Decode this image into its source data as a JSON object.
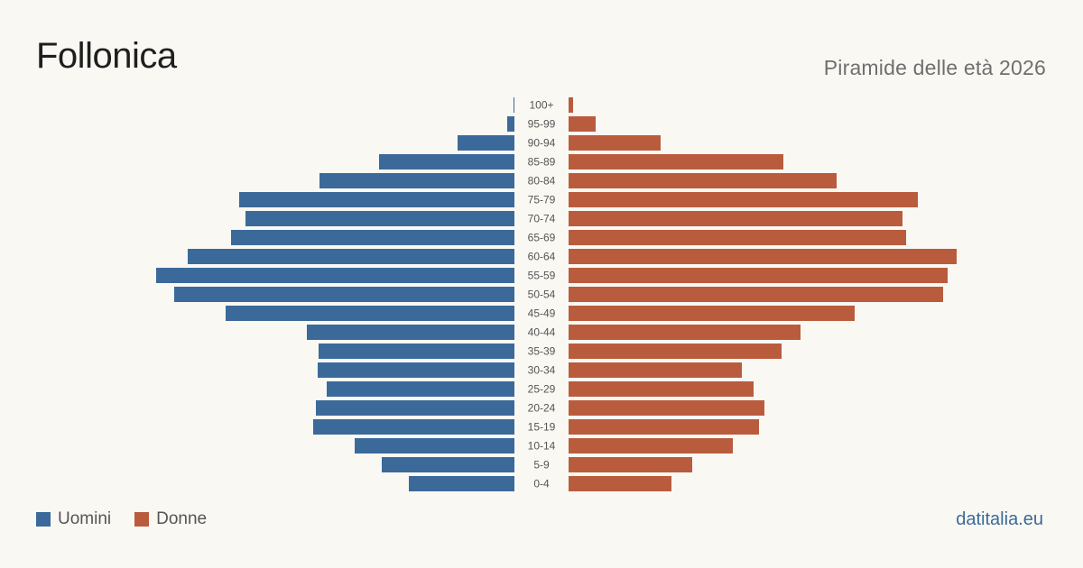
{
  "header": {
    "title": "Follonica",
    "subtitle": "Piramide delle età 2026"
  },
  "legend": {
    "men_label": "Uomini",
    "women_label": "Donne"
  },
  "footer": {
    "brand": "datitalia.eu"
  },
  "colors": {
    "men": "#3b6a9a",
    "women": "#b95c3d",
    "background": "#faf8f3",
    "age_label": "#555555"
  },
  "chart_data": {
    "type": "bar",
    "orientation": "horizontal",
    "style": "population-pyramid",
    "title": "Follonica",
    "subtitle": "Piramide delle età 2026",
    "categories": [
      "100+",
      "95-99",
      "90-94",
      "85-89",
      "80-84",
      "75-79",
      "70-74",
      "65-69",
      "60-64",
      "55-59",
      "50-54",
      "45-49",
      "40-44",
      "35-39",
      "30-34",
      "25-29",
      "20-24",
      "15-19",
      "10-14",
      "5-9",
      "0-4"
    ],
    "series": [
      {
        "name": "Uomini",
        "side": "left",
        "values": [
          1,
          8,
          63,
          150,
          216,
          305,
          298,
          314,
          362,
          397,
          377,
          320,
          230,
          217,
          218,
          208,
          220,
          223,
          177,
          147,
          117
        ]
      },
      {
        "name": "Donne",
        "side": "right",
        "values": [
          5,
          30,
          102,
          238,
          297,
          387,
          370,
          374,
          430,
          420,
          415,
          317,
          257,
          236,
          192,
          205,
          217,
          211,
          182,
          137,
          114
        ]
      }
    ],
    "axis_visible": false,
    "grid": false,
    "legend_position": "bottom-left"
  }
}
